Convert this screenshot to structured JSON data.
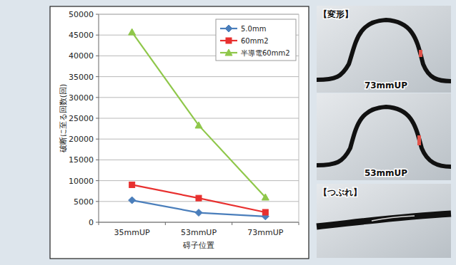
{
  "chart_data": {
    "type": "line",
    "x_label": "碍子位置",
    "y_label": "破断に至る回数(回)",
    "categories": [
      "35mmUP",
      "53mmUP",
      "73mmUP"
    ],
    "series": [
      {
        "name": "5.0mm",
        "color": "#4a7ebb",
        "marker": "diamond",
        "values": [
          5300,
          2300,
          1400
        ]
      },
      {
        "name": "60mm2",
        "color": "#e8302f",
        "marker": "square",
        "values": [
          9000,
          5800,
          2400
        ]
      },
      {
        "name": "半導電60mm2",
        "color": "#8fc74a",
        "marker": "triangle",
        "values": [
          45700,
          23300,
          6000
        ]
      }
    ],
    "ylim": [
      0,
      50000
    ],
    "yticks": [
      0,
      5000,
      10000,
      15000,
      20000,
      25000,
      30000,
      35000,
      40000,
      45000,
      50000
    ],
    "grid": true,
    "legend": "upper right"
  },
  "photos": {
    "deform_heading": "【変形】",
    "labels": [
      "73mmUP",
      "53mmUP"
    ],
    "crush_heading": "【つぶれ】"
  }
}
